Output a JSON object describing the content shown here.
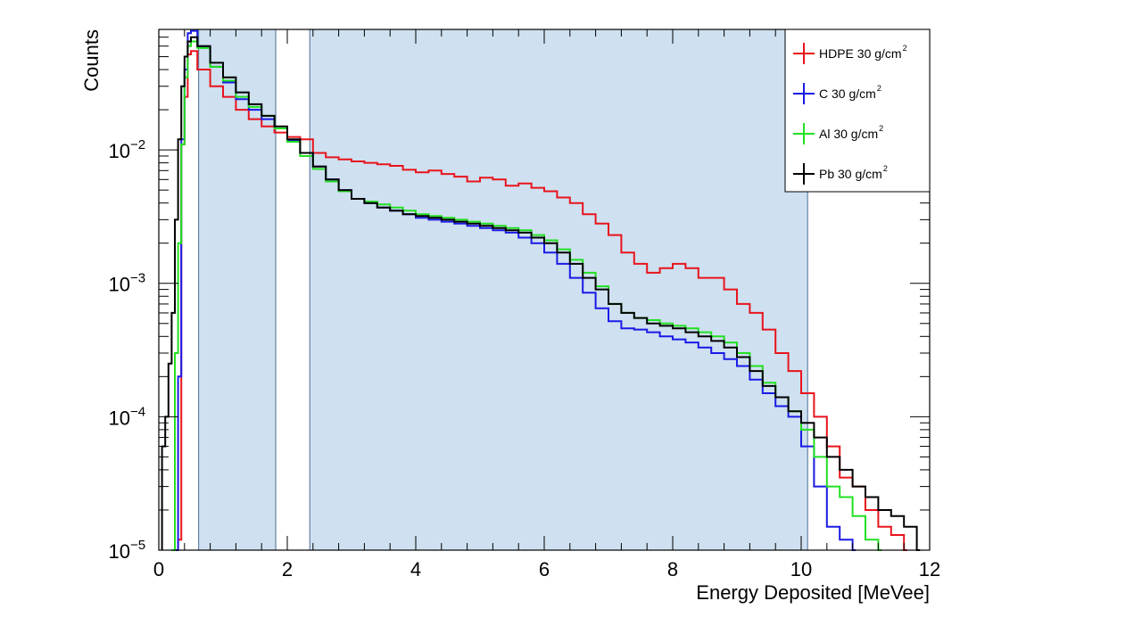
{
  "chart_data": {
    "type": "line",
    "style": "step-histogram",
    "xlabel": "Energy Deposited [MeVee]",
    "ylabel": "Counts",
    "xlim": [
      0,
      12
    ],
    "ylim": [
      1e-05,
      0.08
    ],
    "yscale": "log",
    "x_ticks": [
      0,
      2,
      4,
      6,
      8,
      10,
      12
    ],
    "x_tick_labels": [
      "0",
      "2",
      "4",
      "6",
      "8",
      "10",
      "12"
    ],
    "y_ticks": [
      1e-05,
      0.0001,
      0.001,
      0.01
    ],
    "y_tick_labels": [
      {
        "base": "10",
        "exp": "−5"
      },
      {
        "base": "10",
        "exp": "−4"
      },
      {
        "base": "10",
        "exp": "−3"
      },
      {
        "base": "10",
        "exp": "−2"
      }
    ],
    "shaded_regions": [
      {
        "x_start": 0.62,
        "x_end": 1.82,
        "color": "#cfe0f0"
      },
      {
        "x_start": 2.35,
        "x_end": 10.1,
        "color": "#cfe0f0"
      }
    ],
    "legend_position": "top-right",
    "series": [
      {
        "name": "HDPE 30 g/cm",
        "sup": "2",
        "color": "#e8141c",
        "points": [
          [
            0.3,
            1.2e-05
          ],
          [
            0.35,
            0.011
          ],
          [
            0.4,
            0.025
          ],
          [
            0.45,
            0.052
          ],
          [
            0.5,
            0.055
          ],
          [
            0.6,
            0.04
          ],
          [
            0.8,
            0.03
          ],
          [
            1.0,
            0.025
          ],
          [
            1.2,
            0.02
          ],
          [
            1.4,
            0.017
          ],
          [
            1.6,
            0.015
          ],
          [
            1.8,
            0.0135
          ],
          [
            2.0,
            0.0125
          ],
          [
            2.2,
            0.012
          ],
          [
            2.4,
            0.0095
          ],
          [
            2.6,
            0.0088
          ],
          [
            2.8,
            0.0085
          ],
          [
            3.0,
            0.0082
          ],
          [
            3.2,
            0.008
          ],
          [
            3.4,
            0.0078
          ],
          [
            3.6,
            0.0076
          ],
          [
            3.8,
            0.0071
          ],
          [
            4.0,
            0.0068
          ],
          [
            4.2,
            0.007
          ],
          [
            4.4,
            0.0066
          ],
          [
            4.6,
            0.0063
          ],
          [
            4.8,
            0.0058
          ],
          [
            5.0,
            0.0062
          ],
          [
            5.2,
            0.006
          ],
          [
            5.4,
            0.0054
          ],
          [
            5.6,
            0.0056
          ],
          [
            5.8,
            0.0052
          ],
          [
            6.0,
            0.0049
          ],
          [
            6.2,
            0.0044
          ],
          [
            6.4,
            0.004
          ],
          [
            6.6,
            0.0033
          ],
          [
            6.8,
            0.0028
          ],
          [
            7.0,
            0.0023
          ],
          [
            7.2,
            0.0017
          ],
          [
            7.4,
            0.0014
          ],
          [
            7.6,
            0.0012
          ],
          [
            7.8,
            0.0013
          ],
          [
            8.0,
            0.0014
          ],
          [
            8.2,
            0.0013
          ],
          [
            8.4,
            0.0011
          ],
          [
            8.6,
            0.0011
          ],
          [
            8.8,
            0.0009
          ],
          [
            9.0,
            0.0007
          ],
          [
            9.2,
            0.0006
          ],
          [
            9.4,
            0.00045
          ],
          [
            9.6,
            0.0003
          ],
          [
            9.8,
            0.00022
          ],
          [
            10.0,
            0.00015
          ],
          [
            10.2,
            0.0001
          ],
          [
            10.4,
            6e-05
          ],
          [
            10.6,
            3.5e-05
          ],
          [
            10.8,
            3e-05
          ],
          [
            11.0,
            2e-05
          ],
          [
            11.2,
            1.5e-05
          ],
          [
            11.4,
            1.3e-05
          ],
          [
            11.6,
            1e-05
          ]
        ]
      },
      {
        "name": "C 30 g/cm",
        "sup": "2",
        "color": "#1a1ae6",
        "points": [
          [
            0.25,
            1e-05
          ],
          [
            0.3,
            0.0002
          ],
          [
            0.35,
            0.012
          ],
          [
            0.4,
            0.04
          ],
          [
            0.45,
            0.075
          ],
          [
            0.5,
            0.078
          ],
          [
            0.6,
            0.06
          ],
          [
            0.8,
            0.042
          ],
          [
            1.0,
            0.032
          ],
          [
            1.2,
            0.024
          ],
          [
            1.4,
            0.02
          ],
          [
            1.6,
            0.017
          ],
          [
            1.8,
            0.0145
          ],
          [
            2.0,
            0.0118
          ],
          [
            2.2,
            0.0095
          ],
          [
            2.4,
            0.0075
          ],
          [
            2.6,
            0.006
          ],
          [
            2.8,
            0.005
          ],
          [
            3.0,
            0.0043
          ],
          [
            3.2,
            0.004
          ],
          [
            3.4,
            0.0037
          ],
          [
            3.6,
            0.0035
          ],
          [
            3.8,
            0.0033
          ],
          [
            4.0,
            0.0031
          ],
          [
            4.2,
            0.003
          ],
          [
            4.4,
            0.0029
          ],
          [
            4.6,
            0.0028
          ],
          [
            4.8,
            0.0027
          ],
          [
            5.0,
            0.0026
          ],
          [
            5.2,
            0.0025
          ],
          [
            5.4,
            0.0024
          ],
          [
            5.6,
            0.0022
          ],
          [
            5.8,
            0.002
          ],
          [
            6.0,
            0.0017
          ],
          [
            6.2,
            0.0014
          ],
          [
            6.4,
            0.0011
          ],
          [
            6.6,
            0.00085
          ],
          [
            6.8,
            0.00065
          ],
          [
            7.0,
            0.00052
          ],
          [
            7.2,
            0.00046
          ],
          [
            7.4,
            0.00045
          ],
          [
            7.6,
            0.00043
          ],
          [
            7.8,
            0.0004
          ],
          [
            8.0,
            0.00038
          ],
          [
            8.2,
            0.00036
          ],
          [
            8.4,
            0.00033
          ],
          [
            8.6,
            0.0003
          ],
          [
            8.8,
            0.00027
          ],
          [
            9.0,
            0.00024
          ],
          [
            9.2,
            0.00019
          ],
          [
            9.4,
            0.00015
          ],
          [
            9.6,
            0.00012
          ],
          [
            9.8,
            0.0001
          ],
          [
            10.0,
            6e-05
          ],
          [
            10.2,
            3e-05
          ],
          [
            10.4,
            1.5e-05
          ],
          [
            10.6,
            1.2e-05
          ],
          [
            10.8,
            1e-05
          ]
        ]
      },
      {
        "name": "Al 30 g/cm",
        "sup": "2",
        "color": "#22e022",
        "points": [
          [
            0.2,
            1e-05
          ],
          [
            0.25,
            0.0003
          ],
          [
            0.3,
            0.002
          ],
          [
            0.35,
            0.011
          ],
          [
            0.4,
            0.035
          ],
          [
            0.45,
            0.06
          ],
          [
            0.5,
            0.065
          ],
          [
            0.6,
            0.058
          ],
          [
            0.8,
            0.042
          ],
          [
            1.0,
            0.033
          ],
          [
            1.2,
            0.025
          ],
          [
            1.4,
            0.021
          ],
          [
            1.6,
            0.018
          ],
          [
            1.8,
            0.0145
          ],
          [
            2.0,
            0.0115
          ],
          [
            2.2,
            0.009
          ],
          [
            2.4,
            0.0072
          ],
          [
            2.6,
            0.0058
          ],
          [
            2.8,
            0.0049
          ],
          [
            3.0,
            0.0043
          ],
          [
            3.2,
            0.0041
          ],
          [
            3.4,
            0.0039
          ],
          [
            3.6,
            0.0037
          ],
          [
            3.8,
            0.0035
          ],
          [
            4.0,
            0.0033
          ],
          [
            4.2,
            0.0032
          ],
          [
            4.4,
            0.0031
          ],
          [
            4.6,
            0.003
          ],
          [
            4.8,
            0.0029
          ],
          [
            5.0,
            0.0028
          ],
          [
            5.2,
            0.0027
          ],
          [
            5.4,
            0.0026
          ],
          [
            5.6,
            0.0025
          ],
          [
            5.8,
            0.0023
          ],
          [
            6.0,
            0.0021
          ],
          [
            6.2,
            0.0018
          ],
          [
            6.4,
            0.0015
          ],
          [
            6.6,
            0.0012
          ],
          [
            6.8,
            0.00095
          ],
          [
            7.0,
            0.0007
          ],
          [
            7.2,
            0.0006
          ],
          [
            7.4,
            0.00055
          ],
          [
            7.6,
            0.00053
          ],
          [
            7.8,
            0.0005
          ],
          [
            8.0,
            0.00048
          ],
          [
            8.2,
            0.00046
          ],
          [
            8.4,
            0.00043
          ],
          [
            8.6,
            0.0004
          ],
          [
            8.8,
            0.00036
          ],
          [
            9.0,
            0.0003
          ],
          [
            9.2,
            0.00024
          ],
          [
            9.4,
            0.00018
          ],
          [
            9.6,
            0.00014
          ],
          [
            9.8,
            0.00011
          ],
          [
            10.0,
            8e-05
          ],
          [
            10.2,
            5e-05
          ],
          [
            10.4,
            3e-05
          ],
          [
            10.6,
            2.5e-05
          ],
          [
            10.8,
            1.8e-05
          ],
          [
            11.0,
            1.2e-05
          ],
          [
            11.2,
            1e-05
          ]
        ]
      },
      {
        "name": "Pb 30 g/cm",
        "sup": "2",
        "color": "#000000",
        "points": [
          [
            0.05,
            6e-05
          ],
          [
            0.1,
            0.0001
          ],
          [
            0.15,
            0.00025
          ],
          [
            0.2,
            0.0006
          ],
          [
            0.25,
            0.003
          ],
          [
            0.3,
            0.012
          ],
          [
            0.35,
            0.03
          ],
          [
            0.4,
            0.05
          ],
          [
            0.45,
            0.065
          ],
          [
            0.5,
            0.07
          ],
          [
            0.6,
            0.06
          ],
          [
            0.8,
            0.045
          ],
          [
            1.0,
            0.035
          ],
          [
            1.2,
            0.027
          ],
          [
            1.4,
            0.022
          ],
          [
            1.6,
            0.018
          ],
          [
            1.8,
            0.015
          ],
          [
            2.0,
            0.012
          ],
          [
            2.2,
            0.0095
          ],
          [
            2.4,
            0.0075
          ],
          [
            2.6,
            0.006
          ],
          [
            2.8,
            0.005
          ],
          [
            3.0,
            0.0043
          ],
          [
            3.2,
            0.004
          ],
          [
            3.4,
            0.0037
          ],
          [
            3.6,
            0.0035
          ],
          [
            3.8,
            0.0033
          ],
          [
            4.0,
            0.0032
          ],
          [
            4.2,
            0.0031
          ],
          [
            4.4,
            0.003
          ],
          [
            4.6,
            0.0029
          ],
          [
            4.8,
            0.0028
          ],
          [
            5.0,
            0.0027
          ],
          [
            5.2,
            0.0026
          ],
          [
            5.4,
            0.0025
          ],
          [
            5.6,
            0.0024
          ],
          [
            5.8,
            0.0022
          ],
          [
            6.0,
            0.002
          ],
          [
            6.2,
            0.0017
          ],
          [
            6.4,
            0.0014
          ],
          [
            6.6,
            0.0011
          ],
          [
            6.8,
            0.0009
          ],
          [
            7.0,
            0.0007
          ],
          [
            7.2,
            0.0006
          ],
          [
            7.4,
            0.00055
          ],
          [
            7.6,
            0.0005
          ],
          [
            7.8,
            0.00048
          ],
          [
            8.0,
            0.00046
          ],
          [
            8.2,
            0.00043
          ],
          [
            8.4,
            0.0004
          ],
          [
            8.6,
            0.00037
          ],
          [
            8.8,
            0.00033
          ],
          [
            9.0,
            0.00028
          ],
          [
            9.2,
            0.00022
          ],
          [
            9.4,
            0.00017
          ],
          [
            9.6,
            0.00014
          ],
          [
            9.8,
            0.00011
          ],
          [
            10.0,
            9e-05
          ],
          [
            10.2,
            7e-05
          ],
          [
            10.4,
            5e-05
          ],
          [
            10.6,
            4e-05
          ],
          [
            10.8,
            3e-05
          ],
          [
            11.0,
            2.5e-05
          ],
          [
            11.2,
            2e-05
          ],
          [
            11.4,
            1.8e-05
          ],
          [
            11.6,
            1.5e-05
          ],
          [
            11.8,
            1e-05
          ]
        ]
      }
    ]
  }
}
